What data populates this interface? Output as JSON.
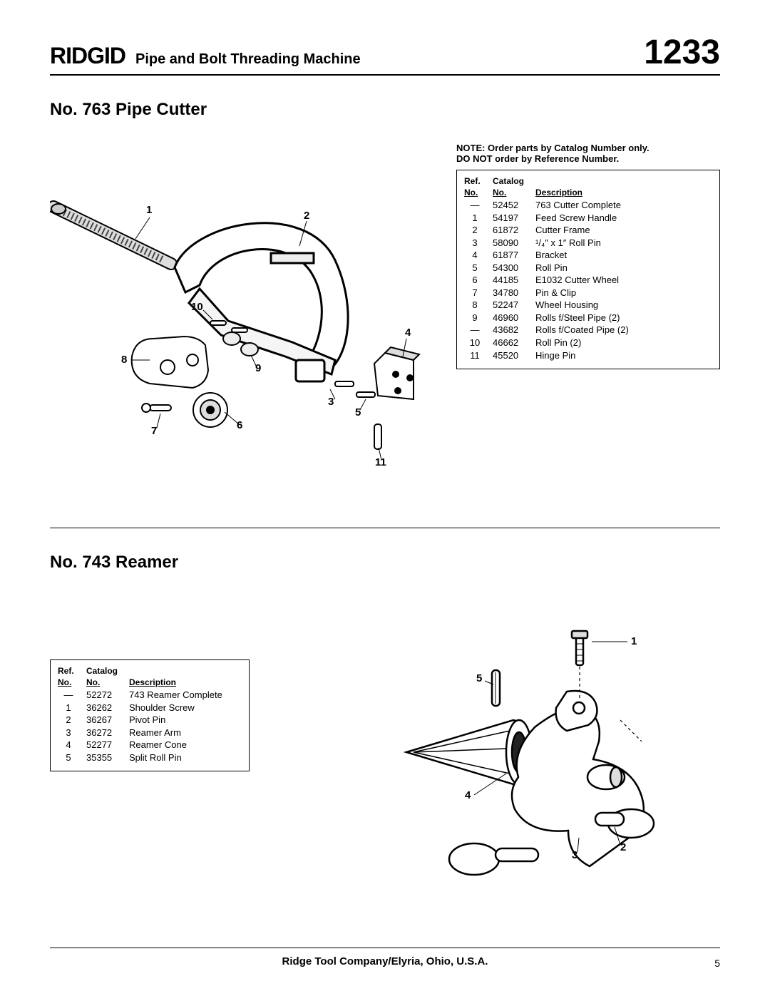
{
  "header": {
    "brand": "RIDGID",
    "product_title": "Pipe and Bolt Threading Machine",
    "model_number": "1233"
  },
  "section1": {
    "title": "No. 763 Pipe Cutter",
    "note_line1": "NOTE: Order parts by Catalog Number only.",
    "note_line2": "DO NOT order by Reference Number.",
    "table": {
      "columns": {
        "ref_top": "Ref.",
        "ref_bot": "No.",
        "cat_top": "Catalog",
        "cat_bot": "No.",
        "desc": "Description"
      },
      "rows": [
        {
          "ref": "—",
          "cat": "52452",
          "desc": "763 Cutter Complete"
        },
        {
          "ref": "1",
          "cat": "54197",
          "desc": "Feed Screw Handle"
        },
        {
          "ref": "2",
          "cat": "61872",
          "desc": "Cutter Frame"
        },
        {
          "ref": "3",
          "cat": "58090",
          "desc": "¹/₄″ x 1″ Roll Pin"
        },
        {
          "ref": "4",
          "cat": "61877",
          "desc": "Bracket"
        },
        {
          "ref": "5",
          "cat": "54300",
          "desc": "Roll Pin"
        },
        {
          "ref": "6",
          "cat": "44185",
          "desc": "E1032 Cutter Wheel"
        },
        {
          "ref": "7",
          "cat": "34780",
          "desc": "Pin & Clip"
        },
        {
          "ref": "8",
          "cat": "52247",
          "desc": "Wheel Housing"
        },
        {
          "ref": "9",
          "cat": "46960",
          "desc": "Rolls f/Steel Pipe (2)"
        },
        {
          "ref": "—",
          "cat": "43682",
          "desc": "Rolls f/Coated Pipe (2)"
        },
        {
          "ref": "10",
          "cat": "46662",
          "desc": "Roll Pin (2)"
        },
        {
          "ref": "11",
          "cat": "45520",
          "desc": "Hinge Pin"
        }
      ]
    },
    "callouts": {
      "c1": "1",
      "c2": "2",
      "c3": "3",
      "c4": "4",
      "c5": "5",
      "c6": "6",
      "c7": "7",
      "c8": "8",
      "c9": "9",
      "c10": "10",
      "c11": "11"
    }
  },
  "section2": {
    "title": "No. 743 Reamer",
    "table": {
      "columns": {
        "ref_top": "Ref.",
        "ref_bot": "No.",
        "cat_top": "Catalog",
        "cat_bot": "No.",
        "desc": "Description"
      },
      "rows": [
        {
          "ref": "—",
          "cat": "52272",
          "desc": "743 Reamer Complete"
        },
        {
          "ref": "1",
          "cat": "36262",
          "desc": "Shoulder Screw"
        },
        {
          "ref": "2",
          "cat": "36267",
          "desc": "Pivot Pin"
        },
        {
          "ref": "3",
          "cat": "36272",
          "desc": "Reamer Arm"
        },
        {
          "ref": "4",
          "cat": "52277",
          "desc": "Reamer Cone"
        },
        {
          "ref": "5",
          "cat": "35355",
          "desc": "Split Roll Pin"
        }
      ]
    },
    "callouts": {
      "c1": "1",
      "c2": "2",
      "c3": "3",
      "c4": "4",
      "c5": "5"
    }
  },
  "footer": {
    "company": "Ridge Tool Company/Elyria, Ohio, U.S.A.",
    "page_number": "5"
  },
  "styling": {
    "page_bg": "#ffffff",
    "text_color": "#000000",
    "rule_color": "#000000",
    "brand_fontsize": 32,
    "model_fontsize": 48,
    "section_title_fontsize": 24,
    "body_fontsize": 13
  }
}
